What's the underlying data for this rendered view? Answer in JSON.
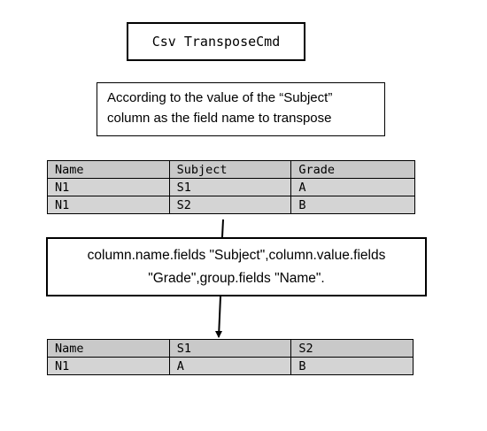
{
  "title": "Csv TransposeCmd",
  "description": "According to the value of the “Subject” column as the field name to transpose",
  "params": "column.name.fields \"Subject\",column.value.fields \"Grade\",group.fields \"Name\".",
  "input_table": {
    "headers": [
      "Name",
      "Subject",
      "Grade"
    ],
    "rows": [
      [
        "N1",
        "S1",
        "A"
      ],
      [
        "N1",
        "S2",
        "B"
      ]
    ]
  },
  "output_table": {
    "headers": [
      "Name",
      "S1",
      "S2"
    ],
    "rows": [
      [
        "N1",
        "A",
        "B"
      ]
    ]
  },
  "colors": {
    "header_bg": "#c9c9c9",
    "row_bg": "#d4d4d4",
    "border": "#000000"
  }
}
